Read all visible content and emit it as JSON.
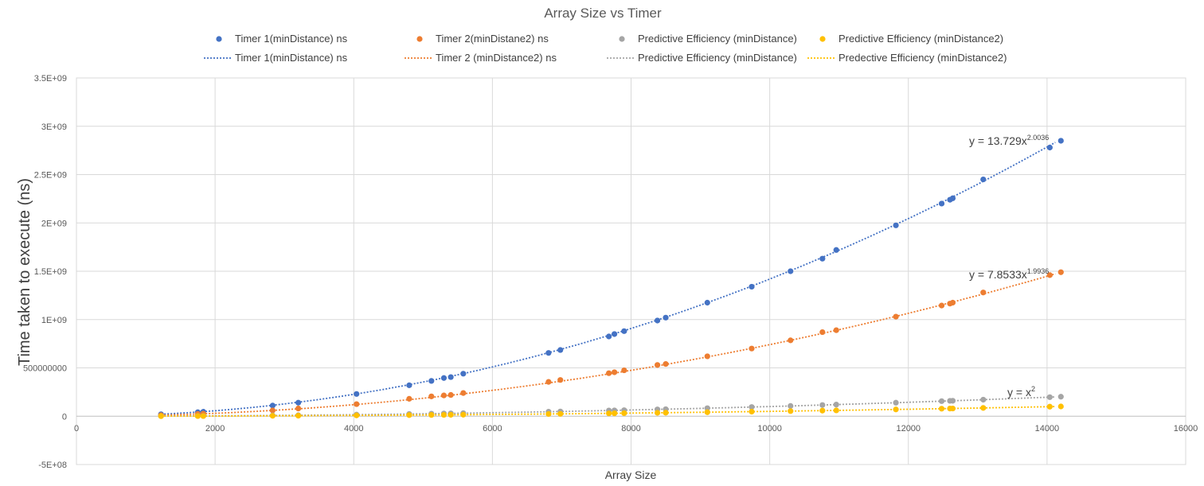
{
  "chart_data": {
    "type": "scatter",
    "title": "Array Size vs Timer",
    "xlabel": "Array Size",
    "ylabel": "Time taken to execute (ns)",
    "xlim": [
      0,
      16000
    ],
    "ylim": [
      -500000000,
      3500000000
    ],
    "x_ticks": [
      0,
      2000,
      4000,
      6000,
      8000,
      10000,
      12000,
      14000,
      16000
    ],
    "x_tick_labels": [
      "0",
      "2000",
      "4000",
      "6000",
      "8000",
      "10000",
      "12000",
      "14000",
      "16000"
    ],
    "y_ticks": [
      -500000000,
      0,
      500000000,
      1000000000,
      1500000000,
      2000000000,
      2500000000,
      3000000000,
      3500000000
    ],
    "y_tick_labels": [
      "-5E+08",
      "0",
      "500000000",
      "1E+09",
      "1.5E+09",
      "2E+09",
      "2.5E+09",
      "3E+09",
      "3.5E+09"
    ],
    "grid": true,
    "legend_position": "top",
    "x": [
      1220,
      1750,
      1830,
      2830,
      3200,
      4040,
      4800,
      5120,
      5300,
      5400,
      5580,
      6810,
      6980,
      7680,
      7760,
      7900,
      8380,
      8500,
      9100,
      9740,
      10300,
      10760,
      10960,
      11820,
      12480,
      12600,
      12640,
      13080,
      14040,
      14200
    ],
    "series": [
      {
        "name": "Timer 1(minDistance) ns",
        "color": "#4472C4",
        "values": [
          20000000,
          41000000,
          46000000,
          110000000,
          140000000,
          230000000,
          320000000,
          365000000,
          395000000,
          405000000,
          440000000,
          655000000,
          685000000,
          825000000,
          850000000,
          880000000,
          990000000,
          1020000000,
          1175000000,
          1340000000,
          1500000000,
          1630000000,
          1720000000,
          1975000000,
          2200000000,
          2240000000,
          2255000000,
          2450000000,
          2780000000,
          2850000000
        ]
      },
      {
        "name": "Timer 2(minDistane2) ns",
        "color": "#ED7D31",
        "values": [
          11000000,
          23000000,
          26000000,
          60000000,
          80000000,
          125000000,
          180000000,
          205000000,
          215000000,
          220000000,
          240000000,
          355000000,
          375000000,
          445000000,
          455000000,
          475000000,
          530000000,
          540000000,
          620000000,
          700000000,
          785000000,
          870000000,
          890000000,
          1030000000,
          1145000000,
          1165000000,
          1175000000,
          1280000000,
          1460000000,
          1490000000
        ]
      },
      {
        "name": "Predictive Efficiency (minDistance)",
        "color": "#A5A5A5",
        "values": [
          1490000,
          3060000,
          3350000,
          8010000,
          10240000,
          16320000,
          23040000,
          26210000,
          28090000,
          29160000,
          31140000,
          46380000,
          48720000,
          58980000,
          60220000,
          62410000,
          70220000,
          72250000,
          82810000,
          94870000,
          106090000,
          115780000,
          120120000,
          139710000,
          155750000,
          158760000,
          159770000,
          171090000,
          197120000,
          201640000
        ]
      },
      {
        "name": "Predictive Efficiency (minDistance2)",
        "color": "#FFC000",
        "values": [
          745000,
          1530000,
          1675000,
          4005000,
          5120000,
          8160000,
          11520000,
          13105000,
          14045000,
          14580000,
          15570000,
          23190000,
          24360000,
          29490000,
          30110000,
          31205000,
          35110000,
          36125000,
          41405000,
          47435000,
          53045000,
          57890000,
          60060000,
          69855000,
          77875000,
          79380000,
          79885000,
          85545000,
          98560000,
          100820000
        ]
      }
    ],
    "trendlines": [
      {
        "name": "Timer 1(minDistance) ns",
        "color": "#4472C4",
        "a": 13.729,
        "b": 2.0036,
        "equation_main": "y = 13.729x",
        "equation_exp": "2.0036"
      },
      {
        "name": "Timer 2 (minDistance2) ns",
        "color": "#ED7D31",
        "a": 7.8533,
        "b": 1.9936,
        "equation_main": "y = 7.8533x",
        "equation_exp": "1.9936"
      },
      {
        "name": "Predictive Efficiency (minDistance)",
        "color": "#A5A5A5",
        "a": 1,
        "b": 2,
        "equation_main": "y = x",
        "equation_exp": "2"
      },
      {
        "name": "Predective Efficiency (minDistance2)",
        "color": "#FFC000",
        "a": 0.5,
        "b": 2,
        "equation_main": "",
        "equation_exp": ""
      }
    ]
  }
}
